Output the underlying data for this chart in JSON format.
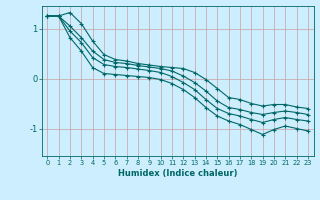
{
  "xlabel": "Humidex (Indice chaleur)",
  "bg_color": "#cceeff",
  "line_color": "#006666",
  "grid_color": "#c8a0a0",
  "xlim": [
    -0.5,
    23.5
  ],
  "ylim": [
    -1.55,
    1.45
  ],
  "yticks": [
    -1,
    0,
    1
  ],
  "xticks": [
    0,
    1,
    2,
    3,
    4,
    5,
    6,
    7,
    8,
    9,
    10,
    11,
    12,
    13,
    14,
    15,
    16,
    17,
    18,
    19,
    20,
    21,
    22,
    23
  ],
  "lines": [
    [
      1.25,
      1.25,
      1.32,
      1.1,
      0.75,
      0.48,
      0.38,
      0.35,
      0.3,
      0.27,
      0.24,
      0.22,
      0.2,
      0.12,
      -0.02,
      -0.2,
      -0.38,
      -0.42,
      -0.5,
      -0.55,
      -0.52,
      -0.52,
      -0.57,
      -0.6
    ],
    [
      1.25,
      1.25,
      1.05,
      0.82,
      0.55,
      0.38,
      0.32,
      0.3,
      0.26,
      0.23,
      0.2,
      0.15,
      0.05,
      -0.08,
      -0.25,
      -0.45,
      -0.58,
      -0.62,
      -0.68,
      -0.72,
      -0.68,
      -0.65,
      -0.68,
      -0.72
    ],
    [
      1.25,
      1.25,
      0.95,
      0.72,
      0.42,
      0.28,
      0.24,
      0.22,
      0.19,
      0.16,
      0.12,
      0.04,
      -0.08,
      -0.22,
      -0.42,
      -0.6,
      -0.7,
      -0.75,
      -0.82,
      -0.88,
      -0.82,
      -0.78,
      -0.82,
      -0.85
    ],
    [
      1.25,
      1.25,
      0.82,
      0.55,
      0.22,
      0.1,
      0.08,
      0.06,
      0.04,
      0.02,
      -0.02,
      -0.1,
      -0.22,
      -0.38,
      -0.58,
      -0.75,
      -0.85,
      -0.92,
      -1.02,
      -1.12,
      -1.02,
      -0.95,
      -1.0,
      -1.05
    ]
  ]
}
